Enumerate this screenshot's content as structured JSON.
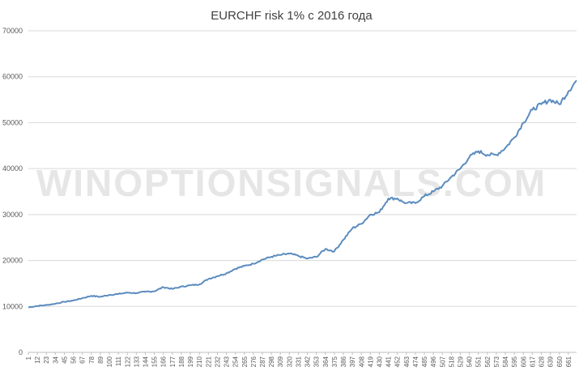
{
  "watermark": "WINOPTIONSIGNALS.COM",
  "chart_data": {
    "type": "line",
    "title": "EURCHF risk 1% с 2016 года",
    "xlabel": "",
    "ylabel": "",
    "ylim": [
      0,
      70000
    ],
    "yticks": [
      "0",
      "10000",
      "20000",
      "30000",
      "40000",
      "50000",
      "60000",
      "70000"
    ],
    "xlim": [
      1,
      671
    ],
    "xticks": [
      "1",
      "12",
      "23",
      "34",
      "45",
      "56",
      "67",
      "78",
      "89",
      "100",
      "111",
      "122",
      "133",
      "144",
      "155",
      "166",
      "177",
      "188",
      "199",
      "210",
      "221",
      "232",
      "243",
      "254",
      "265",
      "276",
      "287",
      "298",
      "309",
      "320",
      "331",
      "342",
      "353",
      "364",
      "375",
      "386",
      "397",
      "408",
      "419",
      "430",
      "441",
      "452",
      "463",
      "474",
      "485",
      "496",
      "507",
      "518",
      "529",
      "540",
      "551",
      "562",
      "573",
      "584",
      "595",
      "606",
      "617",
      "628",
      "639",
      "650",
      "661"
    ],
    "grid": true,
    "legend": "none",
    "line_color": "#5b8cbf",
    "series": [
      {
        "x": [
          1,
          12,
          23,
          34,
          45,
          56,
          67,
          78,
          89,
          100,
          111,
          122,
          133,
          144,
          155,
          166,
          177,
          188,
          199,
          210,
          221,
          232,
          243,
          254,
          265,
          276,
          287,
          298,
          309,
          320,
          331,
          342,
          353,
          364,
          375,
          386,
          397,
          408,
          419,
          430,
          441,
          452,
          458,
          463,
          474,
          485,
          496,
          507,
          518,
          529,
          540,
          551,
          562,
          573,
          584,
          595,
          606,
          617,
          628,
          639,
          650,
          661,
          671
        ],
        "y": [
          9800,
          10100,
          10300,
          10600,
          11000,
          11300,
          11800,
          12300,
          12100,
          12500,
          12700,
          13000,
          12900,
          13200,
          13300,
          14200,
          13800,
          14300,
          14600,
          14800,
          16000,
          16600,
          17200,
          18200,
          18800,
          19300,
          20200,
          20800,
          21200,
          21500,
          21000,
          20400,
          20800,
          22500,
          22000,
          24500,
          27000,
          28000,
          30000,
          30500,
          33500,
          33500,
          32800,
          32500,
          32500,
          34000,
          35000,
          36200,
          38200,
          40000,
          42500,
          43800,
          43000,
          43000,
          44500,
          46800,
          50000,
          52800,
          54000,
          55000,
          54000,
          56800,
          59200
        ]
      }
    ]
  }
}
